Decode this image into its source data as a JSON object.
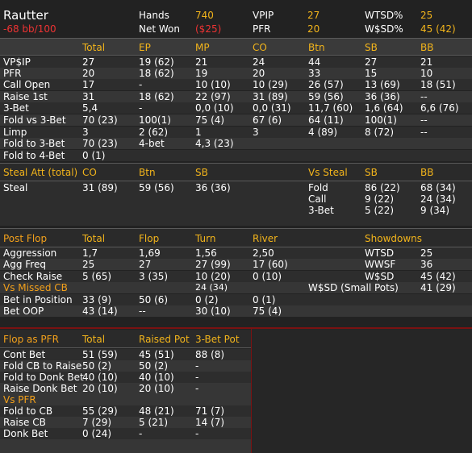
{
  "header": {
    "player": "Rautter",
    "bb100": "-68 bb/100",
    "stats": [
      {
        "label": "Hands",
        "value": "740"
      },
      {
        "label": "Net Won",
        "value": "($25)"
      },
      {
        "label": "VPIP",
        "value": "27"
      },
      {
        "label": "PFR",
        "value": "20"
      },
      {
        "label": "WTSD%",
        "value": "25"
      },
      {
        "label": "W$SD%",
        "value": "45 (42)"
      }
    ]
  },
  "preflop": {
    "columns": [
      "Total",
      "EP",
      "MP",
      "CO",
      "Btn",
      "SB",
      "BB"
    ],
    "rows": [
      {
        "label": "VP$IP",
        "cells": [
          "27",
          "19 (62)",
          "21",
          "24",
          "44",
          "27",
          "21"
        ]
      },
      {
        "label": "PFR",
        "cells": [
          "20",
          "18 (62)",
          "19",
          "20",
          "33",
          "15",
          "10"
        ]
      },
      {
        "label": "Call Open",
        "cells": [
          "17",
          "-",
          "10 (10)",
          "10 (29)",
          "26 (57)",
          "13 (69)",
          "18 (51)"
        ]
      },
      {
        "label": "Raise 1st",
        "cells": [
          "31",
          "18 (62)",
          "22 (97)",
          "31 (89)",
          "59 (56)",
          "36 (36)",
          "--"
        ]
      },
      {
        "label": "3-Bet",
        "cells": [
          "5,4",
          "-",
          "0,0 (10)",
          "0,0 (31)",
          "11,7 (60)",
          "1,6 (64)",
          "6,6 (76)"
        ]
      },
      {
        "label": "Fold vs 3-Bet",
        "cells": [
          "70 (23)",
          "100(1)",
          "75 (4)",
          "67 (6)",
          "64 (11)",
          "100(1)",
          "--"
        ]
      },
      {
        "label": "Limp",
        "cells": [
          "3",
          "2 (62)",
          "1",
          "3",
          "4 (89)",
          "8 (72)",
          "--"
        ]
      },
      {
        "label": "Fold to 3-Bet",
        "cells": [
          "70 (23)",
          "4-bet",
          "4,3 (23)",
          "",
          "",
          "",
          ""
        ]
      },
      {
        "label": "Fold to 4-Bet",
        "cells": [
          "0 (1)",
          "",
          "",
          "",
          "",
          "",
          ""
        ]
      }
    ]
  },
  "steal": {
    "title": "Steal Att (total)",
    "columns": [
      "CO",
      "Btn",
      "SB"
    ],
    "row": {
      "label": "Steal",
      "cells": [
        "31 (89)",
        "59 (56)",
        "36 (36)"
      ]
    },
    "vs_title": "Vs Steal",
    "vs_columns": [
      "SB",
      "BB"
    ],
    "vs_rows": [
      {
        "label": "Fold",
        "cells": [
          "86 (22)",
          "68 (34)"
        ]
      },
      {
        "label": "Call",
        "cells": [
          "9 (22)",
          "24 (34)"
        ]
      },
      {
        "label": "3-Bet",
        "cells": [
          "5 (22)",
          "9 (34)"
        ]
      }
    ]
  },
  "postflop": {
    "title": "Post Flop",
    "columns": [
      "Total",
      "Flop",
      "Turn",
      "River"
    ],
    "rows": [
      {
        "label": "Aggression",
        "cells": [
          "1,7",
          "1,69",
          "1,56",
          "2,50"
        ]
      },
      {
        "label": "Agg Freq",
        "cells": [
          "25",
          "27",
          "27 (99)",
          "17 (60)"
        ]
      },
      {
        "label": "Check Raise",
        "cells": [
          "5 (65)",
          "3 (35)",
          "10 (20)",
          "0 (10)"
        ]
      }
    ],
    "vs_missed": {
      "label": "Vs Missed CB",
      "cells": [
        "",
        "",
        "24 (34)",
        ""
      ]
    },
    "rows2": [
      {
        "label": "Bet in Position",
        "cells": [
          "33 (9)",
          "50 (6)",
          "0 (2)",
          "0 (1)"
        ]
      },
      {
        "label": "Bet OOP",
        "cells": [
          "43 (14)",
          "--",
          "30 (10)",
          "75 (4)"
        ]
      }
    ],
    "showdowns_title": "Showdowns",
    "showdowns": [
      {
        "label": "WTSD",
        "value": "25"
      },
      {
        "label": "WWSF",
        "value": "36"
      },
      {
        "label": "W$SD",
        "value": "45 (42)"
      },
      {
        "label": "W$SD (Small Pots)",
        "value": "41 (29)"
      }
    ]
  },
  "pfr": {
    "title": "Flop as PFR",
    "columns": [
      "Total",
      "Raised Pot",
      "3-Bet Pot"
    ],
    "rows": [
      {
        "label": "Cont Bet",
        "cells": [
          "51 (59)",
          "45 (51)",
          "88 (8)"
        ]
      },
      {
        "label": "Fold CB to Raise",
        "cells": [
          "50 (2)",
          "50 (2)",
          "-"
        ]
      },
      {
        "label": "Fold to Donk Bet",
        "cells": [
          "40 (10)",
          "40 (10)",
          "-"
        ]
      },
      {
        "label": "Raise Donk Bet",
        "cells": [
          "20 (10)",
          "20 (10)",
          "-"
        ]
      }
    ],
    "vs_title": "Vs PFR",
    "vs_rows": [
      {
        "label": "Fold to CB",
        "cells": [
          "55 (29)",
          "48 (21)",
          "71 (7)"
        ]
      },
      {
        "label": "Raise CB",
        "cells": [
          "7 (29)",
          "5 (21)",
          "14 (7)"
        ]
      },
      {
        "label": "Donk Bet",
        "cells": [
          "0 (24)",
          "-",
          "-"
        ]
      }
    ]
  }
}
